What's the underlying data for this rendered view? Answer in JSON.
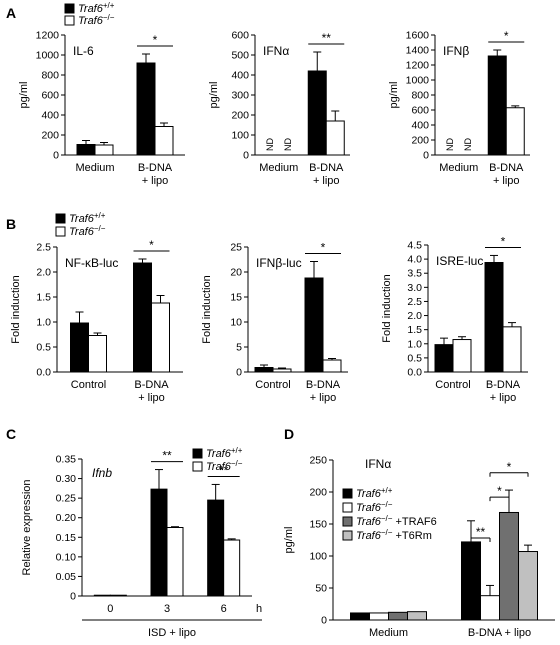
{
  "panels": [
    {
      "letter": "A"
    },
    {
      "letter": "B"
    },
    {
      "letter": "C"
    },
    {
      "letter": "D"
    }
  ],
  "legends": {
    "A": [
      {
        "pre": "Traf6",
        "sup": "+/+",
        "post": "",
        "color": "#000000"
      },
      {
        "pre": "Traf6",
        "sup": "−/−",
        "post": "",
        "color": "#ffffff"
      }
    ],
    "B": [
      {
        "pre": "Traf6",
        "sup": "+/+",
        "post": "",
        "color": "#000000"
      },
      {
        "pre": "Traf6",
        "sup": "−/−",
        "post": "",
        "color": "#ffffff"
      }
    ],
    "C": [
      {
        "pre": "Traf6",
        "sup": "+/+",
        "post": "",
        "color": "#000000"
      },
      {
        "pre": "Traf6",
        "sup": "−/−",
        "post": "",
        "color": "#ffffff"
      }
    ],
    "D": [
      {
        "pre": "Traf6",
        "sup": "+/+",
        "post": "",
        "color": "#000000"
      },
      {
        "pre": "Traf6",
        "sup": "−/−",
        "post": "",
        "color": "#ffffff"
      },
      {
        "pre": "Traf6",
        "sup": "−/−",
        "post": " +TRAF6",
        "color": "#707070"
      },
      {
        "pre": "Traf6",
        "sup": "−/−",
        "post": " +T6Rm",
        "color": "#c0c0c0"
      }
    ]
  },
  "chart_data": [
    {
      "id": "A1",
      "type": "bar",
      "title": "IL-6",
      "ylabel": "pg/ml",
      "ylim": [
        0,
        1200
      ],
      "yticks": [
        "0",
        "200",
        "400",
        "600",
        "800",
        "1000",
        "1200"
      ],
      "categories": [
        "Medium",
        "B-DNA\n+ lipo"
      ],
      "series": [
        {
          "name": "Traf6+/+",
          "values": [
            105,
            920
          ],
          "errors": [
            40,
            90
          ]
        },
        {
          "name": "Traf6−/−",
          "values": [
            100,
            285
          ],
          "errors": [
            25,
            35
          ]
        }
      ],
      "nd": [],
      "sig": [
        {
          "label": "*",
          "group": 1
        }
      ]
    },
    {
      "id": "A2",
      "type": "bar",
      "title": "IFNα",
      "ylabel": "pg/ml",
      "ylim": [
        0,
        600
      ],
      "yticks": [
        "0",
        "100",
        "200",
        "300",
        "400",
        "500",
        "600"
      ],
      "categories": [
        "Medium",
        "B-DNA\n+ lipo"
      ],
      "series": [
        {
          "name": "Traf6+/+",
          "values": [
            0,
            420
          ],
          "errors": [
            0,
            95
          ]
        },
        {
          "name": "Traf6−/−",
          "values": [
            0,
            170
          ],
          "errors": [
            0,
            50
          ]
        }
      ],
      "nd": [
        "ND",
        "ND"
      ],
      "sig": [
        {
          "label": "**",
          "group": 1
        }
      ]
    },
    {
      "id": "A3",
      "type": "bar",
      "title": "IFNβ",
      "ylabel": "pg/ml",
      "ylim": [
        0,
        1600
      ],
      "yticks": [
        "0",
        "200",
        "400",
        "600",
        "800",
        "1000",
        "1200",
        "1400",
        "1600"
      ],
      "categories": [
        "Medium",
        "B-DNA\n+ lipo"
      ],
      "series": [
        {
          "name": "Traf6+/+",
          "values": [
            0,
            1320
          ],
          "errors": [
            0,
            80
          ]
        },
        {
          "name": "Traf6−/−",
          "values": [
            0,
            630
          ],
          "errors": [
            0,
            25
          ]
        }
      ],
      "nd": [
        "ND",
        "ND"
      ],
      "sig": [
        {
          "label": "*",
          "group": 1
        }
      ]
    },
    {
      "id": "B1",
      "type": "bar",
      "title": "NF-κB-luc",
      "ylabel": "Fold induction",
      "ylim": [
        0,
        2.5
      ],
      "yticks": [
        "0.0",
        "0.5",
        "1.0",
        "1.5",
        "2.0",
        "2.5"
      ],
      "categories": [
        "Control",
        "B-DNA\n+ lipo"
      ],
      "series": [
        {
          "name": "Traf6+/+",
          "values": [
            0.98,
            2.18
          ],
          "errors": [
            0.22,
            0.08
          ]
        },
        {
          "name": "Traf6−/−",
          "values": [
            0.73,
            1.38
          ],
          "errors": [
            0.05,
            0.15
          ]
        }
      ],
      "nd": [],
      "sig": [
        {
          "label": "*",
          "group": 1
        }
      ]
    },
    {
      "id": "B2",
      "type": "bar",
      "title": "IFNβ-luc",
      "ylabel": "Fold induction",
      "ylim": [
        0,
        25
      ],
      "yticks": [
        "0",
        "5",
        "10",
        "15",
        "20",
        "25"
      ],
      "categories": [
        "Control",
        "B-DNA\n+ lipo"
      ],
      "series": [
        {
          "name": "Traf6+/+",
          "values": [
            0.9,
            18.8
          ],
          "errors": [
            0.5,
            3.3
          ]
        },
        {
          "name": "Traf6−/−",
          "values": [
            0.6,
            2.4
          ],
          "errors": [
            0.2,
            0.3
          ]
        }
      ],
      "nd": [],
      "sig": [
        {
          "label": "*",
          "group": 1
        }
      ]
    },
    {
      "id": "B3",
      "type": "bar",
      "title": "ISRE-luc",
      "ylabel": "Fold induction",
      "ylim": [
        0,
        4.5
      ],
      "yticks": [
        "0.0",
        "0.5",
        "1.0",
        "1.5",
        "2.0",
        "2.5",
        "3.0",
        "3.5",
        "4.0",
        "4.5"
      ],
      "categories": [
        "Control",
        "B-DNA\n+ lipo"
      ],
      "series": [
        {
          "name": "Traf6+/+",
          "values": [
            0.97,
            3.88
          ],
          "errors": [
            0.23,
            0.25
          ]
        },
        {
          "name": "Traf6−/−",
          "values": [
            1.15,
            1.6
          ],
          "errors": [
            0.1,
            0.15
          ]
        }
      ],
      "nd": [],
      "sig": [
        {
          "label": "*",
          "group": 1
        }
      ]
    },
    {
      "id": "C",
      "type": "bar",
      "title": "Ifnb",
      "ylabel": "Relative expression",
      "ylim": [
        0,
        0.35
      ],
      "yticks": [
        "0",
        "0.05",
        "0.10",
        "0.15",
        "0.20",
        "0.25",
        "0.30",
        "0.35"
      ],
      "categories": [
        "0",
        "3",
        "6"
      ],
      "unit": "h",
      "xlabel": "ISD + lipo",
      "series": [
        {
          "name": "Traf6+/+",
          "values": [
            0.002,
            0.273,
            0.245
          ],
          "errors": [
            0,
            0.05,
            0.04
          ]
        },
        {
          "name": "Traf6−/−",
          "values": [
            0.002,
            0.175,
            0.143
          ],
          "errors": [
            0,
            0.002,
            0.003
          ]
        }
      ],
      "nd": [],
      "sig": [
        {
          "label": "**",
          "group": 1
        },
        {
          "label": "**",
          "group": 2
        }
      ]
    },
    {
      "id": "D",
      "type": "bar",
      "title": "IFNα",
      "ylabel": "pg/ml",
      "ylim": [
        0,
        250
      ],
      "yticks": [
        "0",
        "50",
        "100",
        "150",
        "200",
        "250"
      ],
      "categories": [
        "Medium",
        "B-DNA + lipo"
      ],
      "series": [
        {
          "name": "Traf6+/+",
          "values": [
            11,
            122
          ],
          "errors": [
            0,
            33
          ]
        },
        {
          "name": "Traf6−/−",
          "values": [
            11,
            38
          ],
          "errors": [
            0,
            16
          ]
        },
        {
          "name": "Traf6−/− +TRAF6",
          "values": [
            12,
            168
          ],
          "errors": [
            0,
            35
          ]
        },
        {
          "name": "Traf6−/− +T6Rm",
          "values": [
            13,
            107
          ],
          "errors": [
            0,
            10
          ]
        }
      ],
      "nd": [],
      "sig": [
        {
          "label": "**",
          "group": 1,
          "from": 0,
          "to": 1
        },
        {
          "label": "*",
          "group": 1,
          "from": 1,
          "to": 2
        },
        {
          "label": "*",
          "group": 1,
          "from": 1,
          "to": 3
        }
      ]
    }
  ]
}
